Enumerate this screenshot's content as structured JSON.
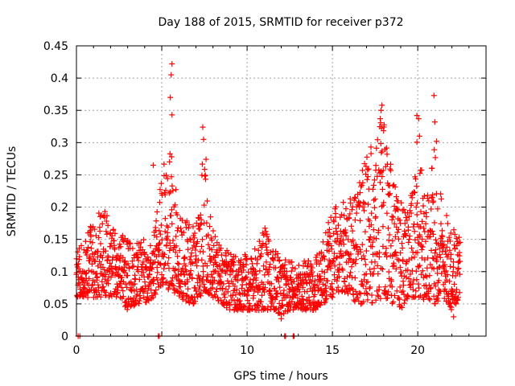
{
  "chart_data": {
    "type": "scatter",
    "title": "Day 188 of 2015, SRMTID for receiver p372",
    "xlabel": "GPS time / hours",
    "ylabel": "SRMTID / TECUs",
    "xlim": [
      0,
      24
    ],
    "ylim": [
      0,
      0.45
    ],
    "x_ticks": [
      0,
      5,
      10,
      15,
      20
    ],
    "x_tick_labels": [
      "0",
      "5",
      "10",
      "15",
      "20"
    ],
    "y_ticks": [
      0,
      0.05,
      0.1,
      0.15,
      0.2,
      0.25,
      0.3,
      0.35,
      0.4,
      0.45
    ],
    "y_tick_labels": [
      "0",
      "0.05",
      "0.1",
      "0.15",
      "0.2",
      "0.25",
      "0.3",
      "0.35",
      "0.4",
      "0.45"
    ],
    "grid": true,
    "marker": "+",
    "color": "#ff0000",
    "series": [
      {
        "name": "SRMTID",
        "envelope_x": [
          0.0,
          0.5,
          1.0,
          1.5,
          2.0,
          2.5,
          3.0,
          3.5,
          4.0,
          4.5,
          5.0,
          5.5,
          6.0,
          6.5,
          7.0,
          7.5,
          8.0,
          8.5,
          9.0,
          9.5,
          10.0,
          10.5,
          11.0,
          11.5,
          12.0,
          12.5,
          13.0,
          13.5,
          14.0,
          14.5,
          15.0,
          15.5,
          16.0,
          16.5,
          17.0,
          17.5,
          18.0,
          18.5,
          19.0,
          19.5,
          20.0,
          20.5,
          21.0,
          21.5,
          22.0,
          22.5
        ],
        "envelope_low": [
          0.06,
          0.06,
          0.06,
          0.06,
          0.06,
          0.06,
          0.04,
          0.05,
          0.05,
          0.06,
          0.08,
          0.07,
          0.06,
          0.05,
          0.05,
          0.07,
          0.06,
          0.05,
          0.04,
          0.04,
          0.04,
          0.04,
          0.04,
          0.04,
          0.03,
          0.04,
          0.04,
          0.04,
          0.04,
          0.05,
          0.06,
          0.07,
          0.06,
          0.05,
          0.04,
          0.05,
          0.06,
          0.05,
          0.04,
          0.06,
          0.06,
          0.05,
          0.05,
          0.06,
          0.04,
          0.06
        ],
        "envelope_high": [
          0.13,
          0.15,
          0.19,
          0.21,
          0.17,
          0.16,
          0.15,
          0.15,
          0.15,
          0.15,
          0.26,
          0.3,
          0.19,
          0.18,
          0.17,
          0.32,
          0.17,
          0.14,
          0.13,
          0.12,
          0.13,
          0.14,
          0.17,
          0.14,
          0.12,
          0.12,
          0.11,
          0.12,
          0.12,
          0.15,
          0.2,
          0.21,
          0.22,
          0.23,
          0.29,
          0.3,
          0.35,
          0.25,
          0.21,
          0.19,
          0.33,
          0.2,
          0.3,
          0.2,
          0.18,
          0.15
        ],
        "outliers": [
          {
            "x": 5.6,
            "y": 0.422
          },
          {
            "x": 5.55,
            "y": 0.405
          },
          {
            "x": 5.5,
            "y": 0.37
          },
          {
            "x": 5.6,
            "y": 0.343
          },
          {
            "x": 7.4,
            "y": 0.324
          },
          {
            "x": 7.45,
            "y": 0.305
          },
          {
            "x": 17.9,
            "y": 0.358
          },
          {
            "x": 17.85,
            "y": 0.35
          },
          {
            "x": 17.8,
            "y": 0.337
          },
          {
            "x": 19.95,
            "y": 0.342
          },
          {
            "x": 20.05,
            "y": 0.337
          },
          {
            "x": 20.1,
            "y": 0.31
          },
          {
            "x": 20.95,
            "y": 0.373
          },
          {
            "x": 21.0,
            "y": 0.332
          },
          {
            "x": 21.1,
            "y": 0.302
          },
          {
            "x": 4.5,
            "y": 0.265
          },
          {
            "x": 12.0,
            "y": 0.027
          },
          {
            "x": 22.1,
            "y": 0.03
          }
        ],
        "zero_points_x": [
          0.1,
          0.2,
          4.8,
          4.85,
          12.2,
          12.25,
          12.7,
          12.75
        ]
      }
    ]
  }
}
